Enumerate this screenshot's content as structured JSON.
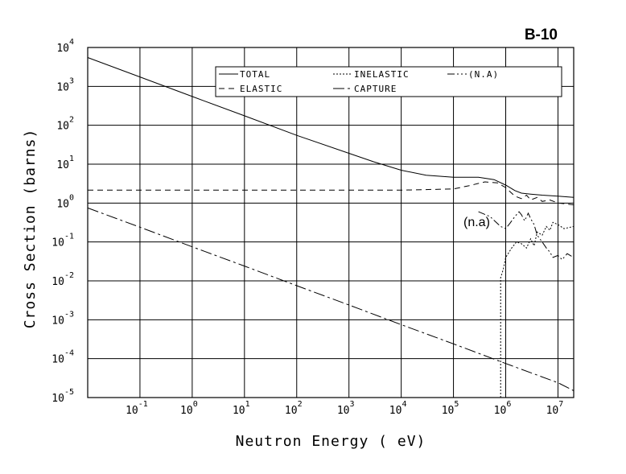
{
  "chart_data": {
    "type": "line",
    "title": "B-10",
    "xlabel": "Neutron Energy ( eV)",
    "ylabel": "Cross Section (barns)",
    "xscale": "log",
    "yscale": "log",
    "xlim": [
      0.01,
      20000000
    ],
    "ylim": [
      1e-05,
      10000
    ],
    "x_ticks": [
      {
        "base": "10",
        "exp": "-1",
        "value": 0.1
      },
      {
        "base": "10",
        "exp": "0",
        "value": 1
      },
      {
        "base": "10",
        "exp": "1",
        "value": 10
      },
      {
        "base": "10",
        "exp": "2",
        "value": 100
      },
      {
        "base": "10",
        "exp": "3",
        "value": 1000
      },
      {
        "base": "10",
        "exp": "4",
        "value": 10000
      },
      {
        "base": "10",
        "exp": "5",
        "value": 100000
      },
      {
        "base": "10",
        "exp": "6",
        "value": 1000000
      },
      {
        "base": "10",
        "exp": "7",
        "value": 10000000
      }
    ],
    "y_ticks": [
      {
        "base": "10",
        "exp": "4",
        "value": 10000
      },
      {
        "base": "10",
        "exp": "3",
        "value": 1000
      },
      {
        "base": "10",
        "exp": "2",
        "value": 100
      },
      {
        "base": "10",
        "exp": "1",
        "value": 10
      },
      {
        "base": "10",
        "exp": "0",
        "value": 1
      },
      {
        "base": "10",
        "exp": "-1",
        "value": 0.1
      },
      {
        "base": "10",
        "exp": "-2",
        "value": 0.01
      },
      {
        "base": "10",
        "exp": "-3",
        "value": 0.001
      },
      {
        "base": "10",
        "exp": "-4",
        "value": 0.0001
      },
      {
        "base": "10",
        "exp": "-5",
        "value": 1e-05
      }
    ],
    "grid": true,
    "legend_position": "top-right",
    "annotations": [
      {
        "text": "(n.a)",
        "x": 300000,
        "y": 0.5
      }
    ],
    "series": [
      {
        "name": "TOTAL",
        "dash": "",
        "x": [
          0.01,
          0.1,
          1,
          10,
          100,
          1000,
          3000,
          10000,
          30000,
          100000,
          300000,
          600000,
          1000000,
          1500000,
          2000000,
          3000000,
          5000000,
          10000000,
          20000000
        ],
        "y": [
          5500,
          1750,
          550,
          175,
          55,
          19,
          11.5,
          7,
          5.2,
          4.6,
          4.6,
          4.0,
          2.9,
          2.1,
          1.8,
          1.7,
          1.6,
          1.5,
          1.4
        ]
      },
      {
        "name": "ELASTIC",
        "dash": "7,5",
        "x": [
          0.01,
          10,
          100,
          1000,
          10000,
          100000,
          200000,
          400000,
          700000,
          1000000,
          1500000,
          2000000,
          2500000,
          3000000,
          4000000,
          5000000,
          7000000,
          10000000,
          20000000
        ],
        "y": [
          2.15,
          2.15,
          2.15,
          2.15,
          2.15,
          2.3,
          2.8,
          3.5,
          3.3,
          2.5,
          1.5,
          1.3,
          1.6,
          1.2,
          1.4,
          1.1,
          1.2,
          1.0,
          0.9
        ]
      },
      {
        "name": "INELASTIC",
        "dash": "2,2",
        "x": [
          800000,
          800000,
          900000,
          1000000,
          1300000,
          1600000,
          2000000,
          2500000,
          3000000,
          3500000,
          4000000,
          5000000,
          6000000,
          7000000,
          8000000,
          10000000,
          13000000,
          20000000
        ],
        "y": [
          1e-05,
          0.012,
          0.02,
          0.04,
          0.07,
          0.1,
          0.09,
          0.07,
          0.12,
          0.08,
          0.18,
          0.15,
          0.25,
          0.2,
          0.32,
          0.28,
          0.22,
          0.25
        ]
      },
      {
        "name": "CAPTURE",
        "dash": "14,4,3,4",
        "x": [
          0.01,
          0.1,
          1,
          10,
          100,
          1000,
          10000,
          100000,
          1000000,
          10000000,
          20000000
        ],
        "y": [
          0.75,
          0.24,
          0.075,
          0.024,
          0.0075,
          0.0024,
          0.00075,
          0.00024,
          7.5e-05,
          2.4e-05,
          1.5e-05
        ]
      },
      {
        "name": "(N.A)",
        "dash": "9,3,2,3,2,3",
        "x": [
          300000,
          500000,
          800000,
          1000000,
          1200000,
          1500000,
          1800000,
          2000000,
          2300000,
          2700000,
          3000000,
          3500000,
          4000000,
          4500000,
          5000000,
          6000000,
          7000000,
          8000000,
          10000000,
          12000000,
          15000000,
          20000000
        ],
        "y": [
          0.6,
          0.45,
          0.25,
          0.22,
          0.3,
          0.45,
          0.6,
          0.5,
          0.35,
          0.55,
          0.4,
          0.28,
          0.15,
          0.12,
          0.1,
          0.07,
          0.055,
          0.04,
          0.045,
          0.035,
          0.05,
          0.04
        ]
      }
    ]
  }
}
